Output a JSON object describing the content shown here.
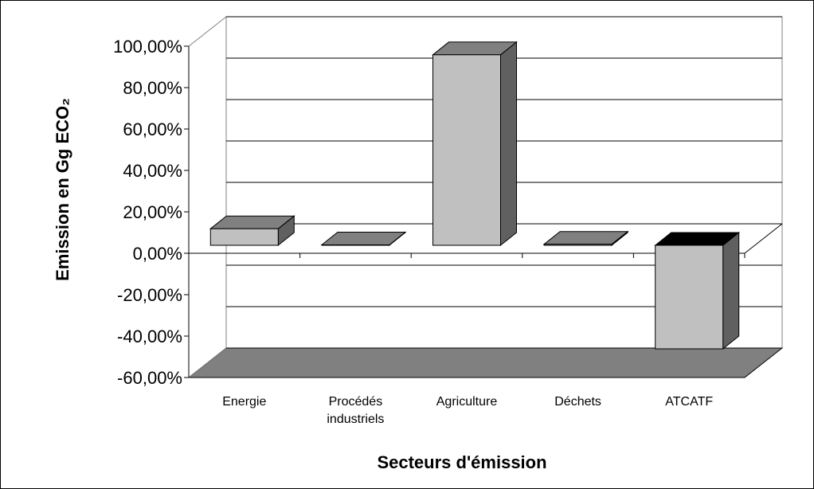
{
  "chart_data": {
    "type": "bar3d",
    "y_axis_label": "Emission en Gg ECO₂",
    "x_axis_label": "Secteurs d'émission",
    "categories": [
      "Energie",
      "Procédés industriels",
      "Agriculture",
      "Déchets",
      "ATCATF"
    ],
    "values": [
      8,
      0.2,
      92,
      0.5,
      -50
    ],
    "color": "#c0c0c0",
    "ylim": [
      -60,
      100
    ],
    "yticks": [
      {
        "value": -60,
        "label": "-60,00%"
      },
      {
        "value": -40,
        "label": "-40,00%"
      },
      {
        "value": -20,
        "label": "-20,00%"
      },
      {
        "value": 0,
        "label": "0,00%"
      },
      {
        "value": 20,
        "label": "20,00%"
      },
      {
        "value": 40,
        "label": "40,00%"
      },
      {
        "value": 60,
        "label": "60,00%"
      },
      {
        "value": 80,
        "label": "80,00%"
      },
      {
        "value": 100,
        "label": "100,00%"
      }
    ],
    "grid": true
  }
}
